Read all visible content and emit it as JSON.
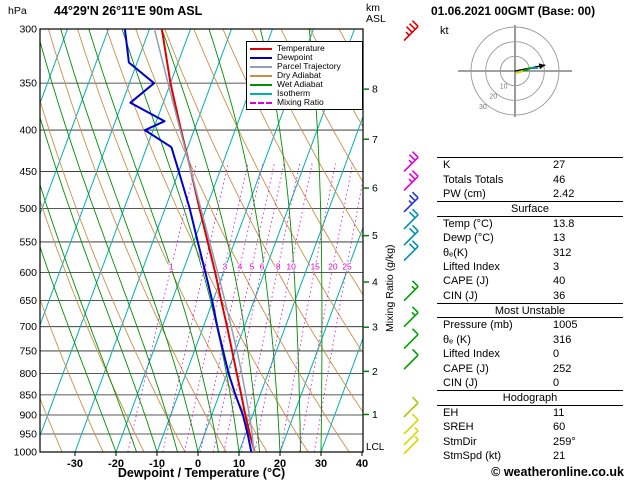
{
  "header": {
    "title": "44°29'N 26°11'E 90m ASL",
    "datetime": "01.06.2021 00GMT (Base: 00)"
  },
  "labels": {
    "pressure_unit": "hPa",
    "km_line1": "km",
    "km_line2": "ASL",
    "lcl": "LCL",
    "x_axis": "Dewpoint / Temperature (°C)",
    "mixing_ratio_axis": "Mixing Ratio (g/kg)"
  },
  "legend": {
    "items": [
      {
        "label": "Temperature",
        "color": "#dd0000",
        "dash": ""
      },
      {
        "label": "Dewpoint",
        "color": "#0000cc",
        "dash": ""
      },
      {
        "label": "Parcel Trajectory",
        "color": "#8fa0b4",
        "dash": ""
      },
      {
        "label": "Dry Adiabat",
        "color": "#cc8f4a",
        "dash": ""
      },
      {
        "label": "Wet Adiabat",
        "color": "#008f00",
        "dash": ""
      },
      {
        "label": "Isotherm",
        "color": "#00b0b0",
        "dash": ""
      },
      {
        "label": "Mixing Ratio",
        "color": "#dd00dd",
        "dash": "2 2"
      }
    ]
  },
  "hodograph": {
    "unit_label": "kt",
    "ring_labels": [
      "10",
      "20",
      "30"
    ],
    "storm_direction_deg": 259,
    "storm_speed_kt": 21
  },
  "panel": {
    "rows": [
      {
        "label": "K",
        "value": "27"
      },
      {
        "label": "Totals Totals",
        "value": "46"
      },
      {
        "label": "PW (cm)",
        "value": "2.42"
      },
      {
        "header": "Surface"
      },
      {
        "label": "Temp (°C)",
        "value": "13.8"
      },
      {
        "label": "Dewp (°C)",
        "value": "13"
      },
      {
        "label": "θₑ(K)",
        "value": "312"
      },
      {
        "label": "Lifted Index",
        "value": "3"
      },
      {
        "label": "CAPE (J)",
        "value": "40"
      },
      {
        "label": "CIN (J)",
        "value": "36"
      },
      {
        "header": "Most Unstable"
      },
      {
        "label": "Pressure (mb)",
        "value": "1005"
      },
      {
        "label": "θₑ (K)",
        "value": "316"
      },
      {
        "label": "Lifted Index",
        "value": "0"
      },
      {
        "label": "CAPE (J)",
        "value": "252"
      },
      {
        "label": "CIN (J)",
        "value": "0"
      },
      {
        "header": "Hodograph"
      },
      {
        "label": "EH",
        "value": "11"
      },
      {
        "label": "SREH",
        "value": "60"
      },
      {
        "label": "StmDir",
        "value": "259°"
      },
      {
        "label": "StmSpd (kt)",
        "value": "21"
      }
    ]
  },
  "footer": {
    "watermark": "© weatheronline.co.uk"
  },
  "chart_data": {
    "type": "line",
    "subtype": "skewt_logp_sounding",
    "pressure_ticks_hpa": [
      300,
      350,
      400,
      450,
      500,
      550,
      600,
      650,
      700,
      750,
      800,
      850,
      900,
      950,
      1000
    ],
    "pressure_range_hpa": [
      1000,
      300
    ],
    "temperature_ticks_c": [
      -30,
      -20,
      -10,
      0,
      10,
      20,
      30,
      40
    ],
    "km_ticks": [
      8,
      7,
      6,
      5,
      4,
      3,
      2,
      1
    ],
    "isotherm_step_c": 10,
    "dry_adiabat_step_k": 10,
    "wet_adiabat_step_c": 5,
    "mixing_ratio_lines_gkg": [
      1,
      2,
      3,
      4,
      5,
      6,
      8,
      10,
      15,
      20,
      25
    ],
    "mixing_ratio_label_pressure_hpa": 590,
    "series": [
      {
        "name": "Temperature",
        "color": "#dd0000",
        "width": 2,
        "pressure_hpa": [
          1000,
          950,
          900,
          850,
          800,
          750,
          700,
          650,
          600,
          550,
          500,
          450,
          400,
          350,
          300
        ],
        "temp_c": [
          13.8,
          11.0,
          8.2,
          5.4,
          2.4,
          -0.8,
          -4.2,
          -8.0,
          -12.0,
          -16.6,
          -21.6,
          -27.0,
          -33.2,
          -40.0,
          -47.0
        ]
      },
      {
        "name": "Dewpoint",
        "color": "#0000cc",
        "width": 2,
        "pressure_hpa": [
          1000,
          950,
          900,
          850,
          800,
          750,
          700,
          650,
          600,
          550,
          500,
          450,
          420,
          400,
          390,
          370,
          350,
          330,
          300
        ],
        "temp_c": [
          13.0,
          10.5,
          7.6,
          4.0,
          0.4,
          -3.0,
          -6.6,
          -10.2,
          -14.4,
          -19.0,
          -24.0,
          -30.0,
          -34.0,
          -42.0,
          -38.0,
          -48.0,
          -44.0,
          -52.0,
          -56.0
        ]
      },
      {
        "name": "Parcel Trajectory",
        "color": "#8fa0b4",
        "width": 1.5,
        "pressure_hpa": [
          1000,
          990,
          950,
          900,
          850,
          800,
          750,
          700,
          650,
          600,
          550,
          500,
          450,
          400,
          350,
          300
        ],
        "temp_c": [
          13.8,
          13.2,
          11.6,
          9.2,
          6.5,
          3.6,
          0.4,
          -3.2,
          -7.1,
          -11.4,
          -16.1,
          -21.3,
          -27.0,
          -33.4,
          -40.6,
          -48.8
        ]
      }
    ],
    "wind_barbs": [
      {
        "pressure_hpa": 310,
        "speed_kt": 35,
        "color": "#dd0000"
      },
      {
        "pressure_hpa": 450,
        "speed_kt": 25,
        "color": "#dd00dd"
      },
      {
        "pressure_hpa": 475,
        "speed_kt": 25,
        "color": "#dd00dd"
      },
      {
        "pressure_hpa": 505,
        "speed_kt": 25,
        "color": "#2233dd"
      },
      {
        "pressure_hpa": 530,
        "speed_kt": 20,
        "color": "#0090b0"
      },
      {
        "pressure_hpa": 555,
        "speed_kt": 20,
        "color": "#0090b0"
      },
      {
        "pressure_hpa": 580,
        "speed_kt": 20,
        "color": "#0090b0"
      },
      {
        "pressure_hpa": 650,
        "speed_kt": 15,
        "color": "#00a000"
      },
      {
        "pressure_hpa": 700,
        "speed_kt": 15,
        "color": "#00a000"
      },
      {
        "pressure_hpa": 745,
        "speed_kt": 10,
        "color": "#00a000"
      },
      {
        "pressure_hpa": 790,
        "speed_kt": 10,
        "color": "#00a000"
      },
      {
        "pressure_hpa": 905,
        "speed_kt": 10,
        "color": "#a8c800"
      },
      {
        "pressure_hpa": 950,
        "speed_kt": 10,
        "color": "#d8d800"
      },
      {
        "pressure_hpa": 980,
        "speed_kt": 5,
        "color": "#d8d800"
      },
      {
        "pressure_hpa": 1005,
        "speed_kt": 5,
        "color": "#d8d800"
      }
    ]
  }
}
